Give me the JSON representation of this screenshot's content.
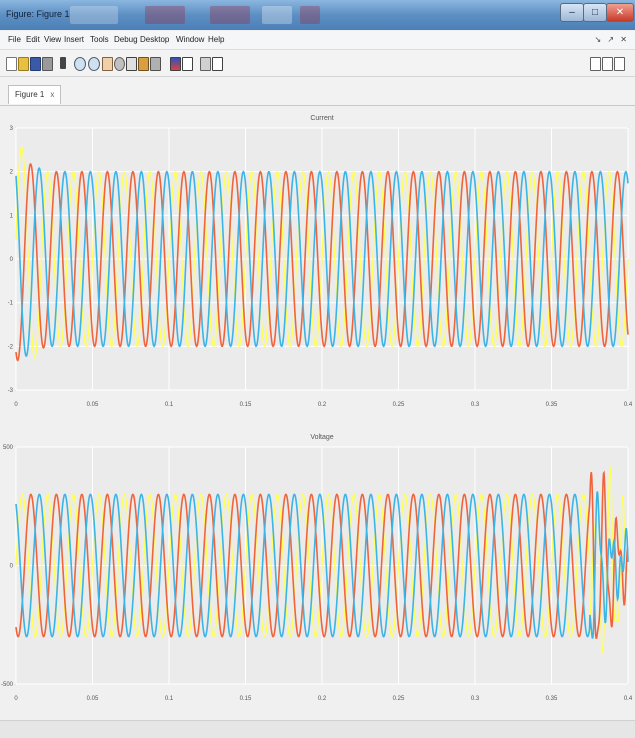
{
  "window": {
    "title": "Figure: Figure 1",
    "minimize": "–",
    "maximize": "□",
    "close": "✕"
  },
  "menu": [
    "File",
    "Edit",
    "View",
    "Insert",
    "Tools",
    "Debug",
    "Desktop",
    "Window",
    "Help"
  ],
  "menu_dock": "↘ ↗ ✕",
  "toolbar_icons": [
    "new-icon",
    "open-icon",
    "save-icon",
    "print-icon",
    "pointer-icon",
    "zoom-in-icon",
    "zoom-out-icon",
    "pan-icon",
    "rotate-icon",
    "data-cursor-icon",
    "brush-icon",
    "link-icon",
    "colorbar-icon",
    "legend-icon",
    "hide-plot-icon",
    "show-plot-icon",
    "dock-icon"
  ],
  "tab": {
    "label": "Figure 1",
    "close": "x"
  },
  "chart_data": [
    {
      "type": "line",
      "title": "Current",
      "x_range": [
        0,
        0.4
      ],
      "xticks": [
        0,
        0.05,
        0.1,
        0.15,
        0.2,
        0.25,
        0.3,
        0.35,
        0.4
      ],
      "xtick_labels": [
        "0",
        "0.05",
        "0.1",
        "0.15",
        "0.2",
        "0.25",
        "0.3",
        "0.35",
        "0.4"
      ],
      "y_range": [
        -3,
        3
      ],
      "yticks": [
        -3,
        -2,
        -1,
        0,
        1,
        2,
        3
      ],
      "ytick_labels": [
        "-3",
        "-2",
        "-1",
        "0",
        "1",
        "2",
        "3"
      ],
      "grid": true,
      "amplitude": 2,
      "cycles": 24,
      "series_colors": [
        "#ffff5a",
        "#f0643c",
        "#3cb4e6"
      ],
      "phase_offsets_deg": [
        0,
        120,
        240
      ],
      "transient": {
        "start": 0,
        "end": 0.02,
        "peak": 2.8
      }
    },
    {
      "type": "line",
      "title": "Voltage",
      "x_range": [
        0,
        0.4
      ],
      "xticks": [
        0,
        0.05,
        0.1,
        0.15,
        0.2,
        0.25,
        0.3,
        0.35,
        0.4
      ],
      "xtick_labels": [
        "0",
        "0.05",
        "0.1",
        "0.15",
        "0.2",
        "0.25",
        "0.3",
        "0.35",
        "0.4"
      ],
      "y_range": [
        -500,
        500
      ],
      "yticks": [
        -500,
        0,
        500
      ],
      "ytick_labels": [
        "-500",
        "0",
        "500"
      ],
      "grid": true,
      "amplitude": 300,
      "cycles": 24,
      "series_colors": [
        "#ffff5a",
        "#f0643c",
        "#3cb4e6"
      ],
      "phase_offsets_deg": [
        0,
        120,
        240
      ],
      "disturbance": {
        "start": 0.375,
        "end": 0.4,
        "peak": 420
      }
    }
  ]
}
